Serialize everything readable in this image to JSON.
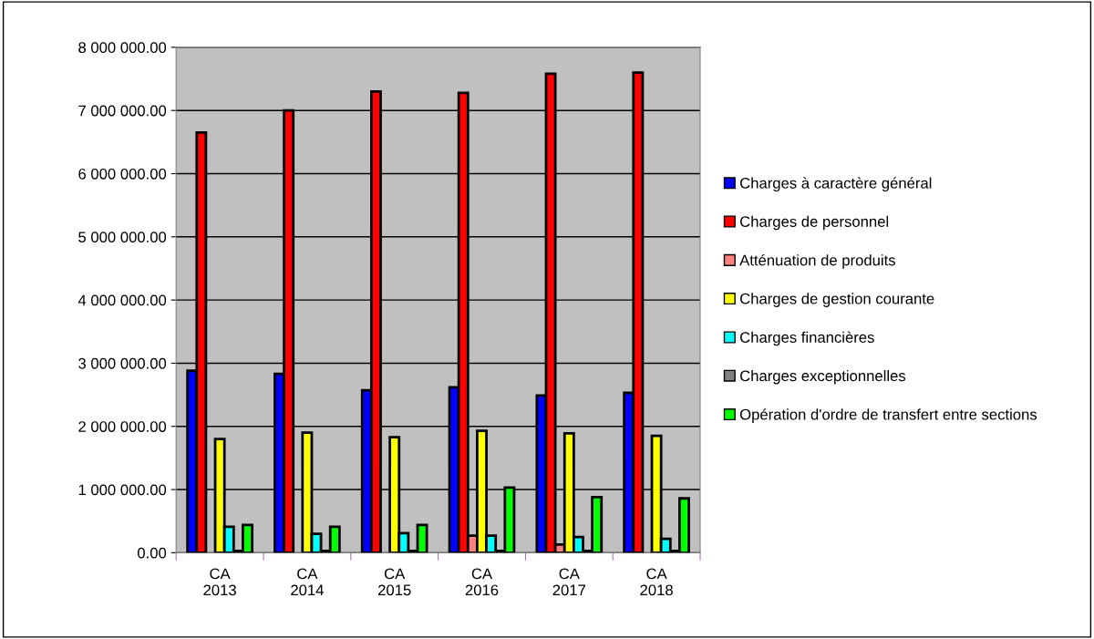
{
  "chart_data": {
    "type": "bar",
    "categories": [
      "CA\n2013",
      "CA\n2014",
      "CA\n2015",
      "CA\n2016",
      "CA\n2017",
      "CA\n2018"
    ],
    "series": [
      {
        "name": "Charges à caractère général",
        "color": "#0000ff",
        "values": [
          2880000,
          2830000,
          2570000,
          2620000,
          2490000,
          2530000
        ]
      },
      {
        "name": "Charges de personnel",
        "color": "#ff0000",
        "values": [
          6650000,
          7000000,
          7300000,
          7280000,
          7580000,
          7600000
        ]
      },
      {
        "name": "Atténuation de produits",
        "color": "#ff8080",
        "values": [
          null,
          null,
          null,
          270000,
          130000,
          null
        ]
      },
      {
        "name": "Charges de gestion courante",
        "color": "#ffff00",
        "values": [
          1800000,
          1900000,
          1830000,
          1930000,
          1890000,
          1850000
        ]
      },
      {
        "name": "Charges financières",
        "color": "#00ffff",
        "values": [
          410000,
          300000,
          310000,
          270000,
          250000,
          220000
        ]
      },
      {
        "name": "Charges exceptionnelles",
        "color": "#808080",
        "values": [
          30000,
          30000,
          30000,
          30000,
          30000,
          30000
        ]
      },
      {
        "name": "Opération d'ordre de transfert entre sections",
        "color": "#00ff00",
        "values": [
          440000,
          410000,
          440000,
          1030000,
          880000,
          860000
        ]
      }
    ],
    "ylim": [
      0,
      8000000
    ],
    "yticks": [
      {
        "value": 0,
        "label": "0.00"
      },
      {
        "value": 1000000,
        "label": "1 000 000.00"
      },
      {
        "value": 2000000,
        "label": "2 000 000.00"
      },
      {
        "value": 3000000,
        "label": "3 000 000.00"
      },
      {
        "value": 4000000,
        "label": "4 000 000.00"
      },
      {
        "value": 5000000,
        "label": "5 000 000.00"
      },
      {
        "value": 6000000,
        "label": "6 000 000.00"
      },
      {
        "value": 7000000,
        "label": "7 000 000.00"
      },
      {
        "value": 8000000,
        "label": "8 000 000.00"
      }
    ],
    "grid": "y",
    "legend": "right"
  }
}
